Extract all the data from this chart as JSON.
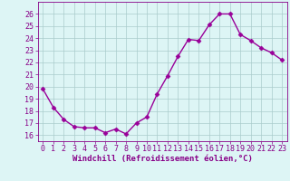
{
  "x": [
    0,
    1,
    2,
    3,
    4,
    5,
    6,
    7,
    8,
    9,
    10,
    11,
    12,
    13,
    14,
    15,
    16,
    17,
    18,
    19,
    20,
    21,
    22,
    23
  ],
  "y": [
    19.8,
    18.3,
    17.3,
    16.7,
    16.6,
    16.6,
    16.2,
    16.5,
    16.1,
    17.0,
    17.5,
    19.4,
    20.9,
    22.5,
    23.9,
    23.8,
    25.1,
    26.0,
    26.0,
    24.3,
    23.8,
    23.2,
    22.8,
    22.2
  ],
  "line_color": "#990099",
  "marker": "D",
  "marker_size": 2.5,
  "linewidth": 1.0,
  "xlabel": "Windchill (Refroidissement éolien,°C)",
  "xlabel_fontsize": 6.5,
  "ylim": [
    15.5,
    27.0
  ],
  "xlim": [
    -0.5,
    23.5
  ],
  "yticks": [
    16,
    17,
    18,
    19,
    20,
    21,
    22,
    23,
    24,
    25,
    26
  ],
  "xticks": [
    0,
    1,
    2,
    3,
    4,
    5,
    6,
    7,
    8,
    9,
    10,
    11,
    12,
    13,
    14,
    15,
    16,
    17,
    18,
    19,
    20,
    21,
    22,
    23
  ],
  "grid_color": "#aacccc",
  "bg_color": "#ddf5f5",
  "tick_fontsize": 6.0,
  "tick_color": "#880088",
  "spine_color": "#880088",
  "fig_bg": "#ddf5f5"
}
